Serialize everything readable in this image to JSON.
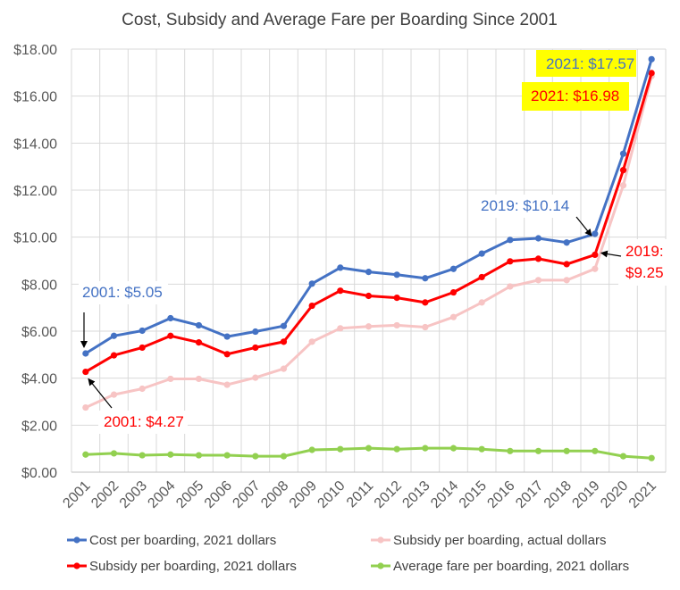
{
  "chart_data": {
    "type": "line",
    "title": "Cost, Subsidy and Average Fare per Boarding Since 2001",
    "xlabel": "",
    "ylabel": "",
    "ylim": [
      0,
      18
    ],
    "y_ticks": [
      0,
      2,
      4,
      6,
      8,
      10,
      12,
      14,
      16,
      18
    ],
    "y_tick_labels": [
      "$0.00",
      "$2.00",
      "$4.00",
      "$6.00",
      "$8.00",
      "$10.00",
      "$12.00",
      "$14.00",
      "$16.00",
      "$18.00"
    ],
    "grid": true,
    "legend_position": "bottom",
    "categories": [
      "2001",
      "2002",
      "2003",
      "2004",
      "2005",
      "2006",
      "2007",
      "2008",
      "2009",
      "2010",
      "2011",
      "2012",
      "2013",
      "2014",
      "2015",
      "2016",
      "2017",
      "2018",
      "2019",
      "2020",
      "2021"
    ],
    "series": [
      {
        "name": "Subsidy per boarding, actual dollars",
        "color": "#f7c4c4",
        "values": [
          2.75,
          3.3,
          3.55,
          3.97,
          3.97,
          3.72,
          4.02,
          4.4,
          5.55,
          6.12,
          6.2,
          6.25,
          6.17,
          6.6,
          7.22,
          7.9,
          8.17,
          8.17,
          8.65,
          12.2,
          16.85
        ]
      },
      {
        "name": "Average fare per boarding, 2021 dollars",
        "color": "#92d050",
        "values": [
          0.75,
          0.8,
          0.72,
          0.75,
          0.72,
          0.72,
          0.68,
          0.68,
          0.95,
          0.98,
          1.02,
          0.98,
          1.02,
          1.02,
          0.98,
          0.9,
          0.9,
          0.9,
          0.9,
          0.68,
          0.6
        ]
      },
      {
        "name": "Subsidy per boarding, 2021 dollars",
        "color": "#ff0000",
        "values": [
          4.27,
          4.97,
          5.3,
          5.8,
          5.52,
          5.02,
          5.3,
          5.55,
          7.08,
          7.72,
          7.5,
          7.42,
          7.22,
          7.65,
          8.3,
          8.97,
          9.08,
          8.85,
          9.25,
          12.85,
          16.98
        ]
      },
      {
        "name": "Cost per boarding, 2021 dollars",
        "color": "#4472c4",
        "values": [
          5.05,
          5.8,
          6.02,
          6.55,
          6.25,
          5.77,
          5.98,
          6.22,
          8.02,
          8.7,
          8.52,
          8.4,
          8.25,
          8.65,
          9.3,
          9.88,
          9.95,
          9.77,
          10.14,
          13.55,
          17.57
        ]
      }
    ],
    "legend_order": [
      3,
      0,
      2,
      1
    ],
    "annotations": [
      {
        "text": "2021: $17.57",
        "color": "#4472c4",
        "highlight": "#ffff00"
      },
      {
        "text": "2021: $16.98",
        "color": "#ff0000",
        "highlight": "#ffff00"
      },
      {
        "text": "2019: $10.14",
        "color": "#4472c4"
      },
      {
        "text": "2019:",
        "color": "#ff0000"
      },
      {
        "text": "$9.25",
        "color": "#ff0000"
      },
      {
        "text": "2001: $5.05",
        "color": "#4472c4"
      },
      {
        "text": "2001: $4.27",
        "color": "#ff0000"
      }
    ]
  }
}
